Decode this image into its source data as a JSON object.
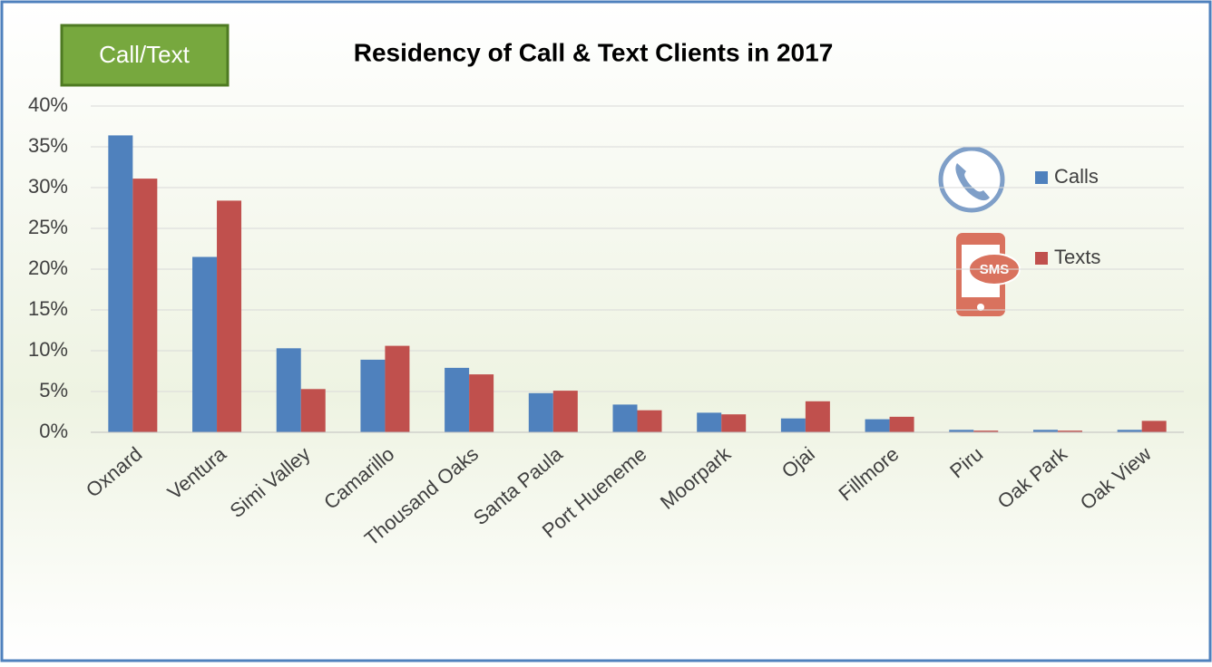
{
  "badge": "Call/Text",
  "chart_data": {
    "type": "bar",
    "title": "Residency of Call & Text Clients in 2017",
    "categories": [
      "Oxnard",
      "Ventura",
      "Simi Valley",
      "Camarillo",
      "Thousand Oaks",
      "Santa Paula",
      "Port Hueneme",
      "Moorpark",
      "Ojai",
      "Fillmore",
      "Piru",
      "Oak Park",
      "Oak View"
    ],
    "series": [
      {
        "name": "Calls",
        "color": "#4f81bd",
        "values": [
          36.4,
          21.5,
          10.3,
          8.9,
          7.9,
          4.8,
          3.4,
          2.4,
          1.7,
          1.6,
          0.3,
          0.3,
          0.3
        ]
      },
      {
        "name": "Texts",
        "color": "#c0504d",
        "values": [
          31.1,
          28.4,
          5.3,
          10.6,
          7.1,
          5.1,
          2.7,
          2.2,
          3.8,
          1.9,
          0.2,
          0.2,
          1.4
        ]
      }
    ],
    "ylim": [
      0,
      40
    ],
    "yticks": [
      {
        "value": 0,
        "label": "0%"
      },
      {
        "value": 5,
        "label": "5%"
      },
      {
        "value": 10,
        "label": "10%"
      },
      {
        "value": 15,
        "label": "15%"
      },
      {
        "value": 20,
        "label": "20%"
      },
      {
        "value": 25,
        "label": "25%"
      },
      {
        "value": 30,
        "label": "30%"
      },
      {
        "value": 35,
        "label": "35%"
      },
      {
        "value": 40,
        "label": "40%"
      }
    ],
    "grid": true,
    "legend": "top-right"
  }
}
